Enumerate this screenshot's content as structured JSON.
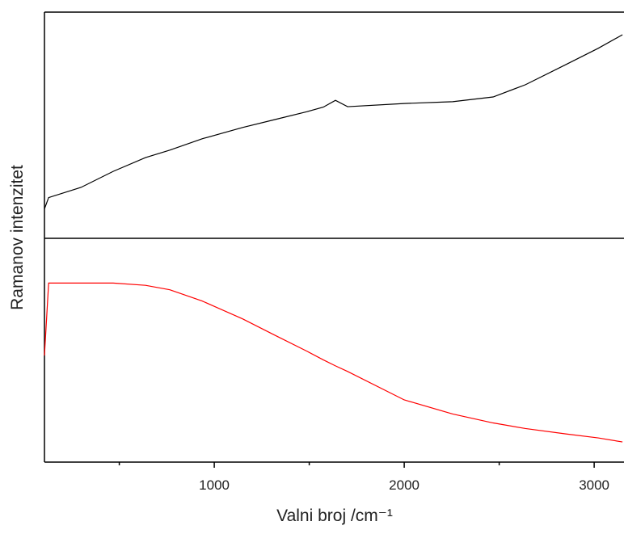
{
  "chart_data": {
    "type": "line",
    "x_label": "Valni broj /cm⁻¹",
    "y_label": "Ramanov intenzitet",
    "xlim": [
      106,
      3157
    ],
    "xticks": [
      1000,
      2000,
      3000
    ],
    "xminorticks": [
      500,
      1500,
      2500
    ],
    "x": [
      106,
      128,
      298,
      468,
      638,
      766,
      936,
      1149,
      1319,
      1489,
      1574,
      1638,
      1702,
      2000,
      2255,
      2468,
      2638,
      2851,
      3021,
      3149
    ],
    "series": [
      {
        "color": "#000000",
        "ylim": [
          0,
          100
        ],
        "values": [
          13,
          18,
          22.5,
          29.6,
          35.7,
          39,
          44,
          49,
          52.5,
          56,
          58,
          61,
          58.2,
          59.6,
          60.4,
          62.5,
          67.9,
          76.8,
          84,
          90
        ]
      },
      {
        "color": "#ff0000",
        "ylim": [
          0,
          100
        ],
        "values": [
          47.6,
          80,
          80,
          80,
          79,
          77,
          72,
          64,
          56.7,
          49.5,
          45.7,
          43,
          40.5,
          27.8,
          21.5,
          17.5,
          15,
          12.6,
          10.8,
          9
        ]
      }
    ]
  }
}
